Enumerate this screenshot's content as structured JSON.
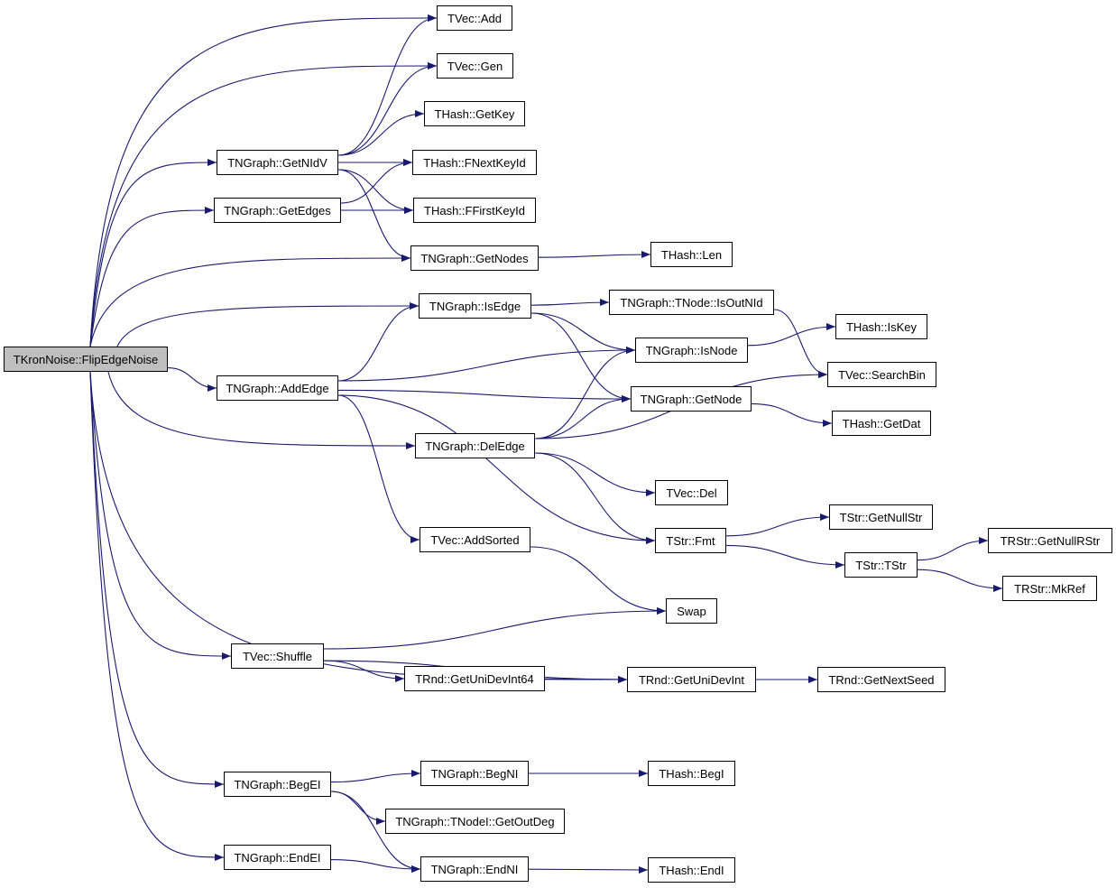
{
  "colors": {
    "edge": "#191970",
    "root_fill": "#bfbfbf",
    "node_fill": "#ffffff"
  },
  "nodes": [
    {
      "id": "root",
      "label": "TKronNoise::FlipEdgeNoise",
      "root": true
    },
    {
      "id": "vadd",
      "label": "TVec::Add"
    },
    {
      "id": "vgen",
      "label": "TVec::Gen"
    },
    {
      "id": "hgetkey",
      "label": "THash::GetKey"
    },
    {
      "id": "getnidv",
      "label": "TNGraph::GetNIdV"
    },
    {
      "id": "fnext",
      "label": "THash::FNextKeyId"
    },
    {
      "id": "getedges",
      "label": "TNGraph::GetEdges"
    },
    {
      "id": "ffirst",
      "label": "THash::FFirstKeyId"
    },
    {
      "id": "getnodes",
      "label": "TNGraph::GetNodes"
    },
    {
      "id": "hlen",
      "label": "THash::Len"
    },
    {
      "id": "isedge",
      "label": "TNGraph::IsEdge"
    },
    {
      "id": "isoutnid",
      "label": "TNGraph::TNode::IsOutNId"
    },
    {
      "id": "iskey",
      "label": "THash::IsKey"
    },
    {
      "id": "isnode",
      "label": "TNGraph::IsNode"
    },
    {
      "id": "searchbin",
      "label": "TVec::SearchBin"
    },
    {
      "id": "addedge",
      "label": "TNGraph::AddEdge"
    },
    {
      "id": "getnode",
      "label": "TNGraph::GetNode"
    },
    {
      "id": "getdat",
      "label": "THash::GetDat"
    },
    {
      "id": "deledge",
      "label": "TNGraph::DelEdge"
    },
    {
      "id": "vdel",
      "label": "TVec::Del"
    },
    {
      "id": "getnullstr",
      "label": "TStr::GetNullStr"
    },
    {
      "id": "addsorted",
      "label": "TVec::AddSorted"
    },
    {
      "id": "fmt",
      "label": "TStr::Fmt"
    },
    {
      "id": "tstr",
      "label": "TStr::TStr"
    },
    {
      "id": "getnullrstr",
      "label": "TRStr::GetNullRStr"
    },
    {
      "id": "mkref",
      "label": "TRStr::MkRef"
    },
    {
      "id": "swap",
      "label": "Swap"
    },
    {
      "id": "shuffle",
      "label": "TVec::Shuffle"
    },
    {
      "id": "unidev64",
      "label": "TRnd::GetUniDevInt64"
    },
    {
      "id": "unidev",
      "label": "TRnd::GetUniDevInt"
    },
    {
      "id": "nextseed",
      "label": "TRnd::GetNextSeed"
    },
    {
      "id": "begei",
      "label": "TNGraph::BegEI"
    },
    {
      "id": "begni",
      "label": "TNGraph::BegNI"
    },
    {
      "id": "hbegi",
      "label": "THash::BegI"
    },
    {
      "id": "getoutdeg",
      "label": "TNGraph::TNodeI::GetOutDeg"
    },
    {
      "id": "endei",
      "label": "TNGraph::EndEI"
    },
    {
      "id": "endni",
      "label": "TNGraph::EndNI"
    },
    {
      "id": "hendi",
      "label": "THash::EndI"
    }
  ],
  "edges": [
    [
      "root",
      "vadd"
    ],
    [
      "root",
      "vgen"
    ],
    [
      "root",
      "getnidv"
    ],
    [
      "root",
      "getedges"
    ],
    [
      "root",
      "getnodes"
    ],
    [
      "root",
      "isedge"
    ],
    [
      "root",
      "addedge"
    ],
    [
      "root",
      "deledge"
    ],
    [
      "root",
      "shuffle"
    ],
    [
      "root",
      "unidev"
    ],
    [
      "root",
      "begei"
    ],
    [
      "root",
      "endei"
    ],
    [
      "getnidv",
      "vadd"
    ],
    [
      "getnidv",
      "vgen"
    ],
    [
      "getnidv",
      "hgetkey"
    ],
    [
      "getnidv",
      "fnext"
    ],
    [
      "getnidv",
      "ffirst"
    ],
    [
      "getnidv",
      "getnodes"
    ],
    [
      "getedges",
      "fnext"
    ],
    [
      "getedges",
      "ffirst"
    ],
    [
      "getnodes",
      "hlen"
    ],
    [
      "isedge",
      "isoutnid"
    ],
    [
      "isedge",
      "isnode"
    ],
    [
      "isedge",
      "getnode"
    ],
    [
      "isoutnid",
      "searchbin"
    ],
    [
      "isnode",
      "iskey"
    ],
    [
      "addedge",
      "isedge"
    ],
    [
      "addedge",
      "isnode"
    ],
    [
      "addedge",
      "getnode"
    ],
    [
      "addedge",
      "addsorted"
    ],
    [
      "addedge",
      "fmt"
    ],
    [
      "getnode",
      "getdat"
    ],
    [
      "deledge",
      "isnode"
    ],
    [
      "deledge",
      "getnode"
    ],
    [
      "deledge",
      "searchbin"
    ],
    [
      "deledge",
      "vdel"
    ],
    [
      "deledge",
      "fmt"
    ],
    [
      "fmt",
      "getnullstr"
    ],
    [
      "fmt",
      "tstr"
    ],
    [
      "tstr",
      "getnullrstr"
    ],
    [
      "tstr",
      "mkref"
    ],
    [
      "addsorted",
      "swap"
    ],
    [
      "shuffle",
      "swap"
    ],
    [
      "shuffle",
      "unidev64"
    ],
    [
      "shuffle",
      "unidev"
    ],
    [
      "unidev64",
      "unidev"
    ],
    [
      "unidev",
      "nextseed"
    ],
    [
      "begei",
      "begni"
    ],
    [
      "begei",
      "getoutdeg"
    ],
    [
      "begei",
      "endni"
    ],
    [
      "begni",
      "hbegi"
    ],
    [
      "endei",
      "endni"
    ],
    [
      "endni",
      "hendi"
    ]
  ]
}
